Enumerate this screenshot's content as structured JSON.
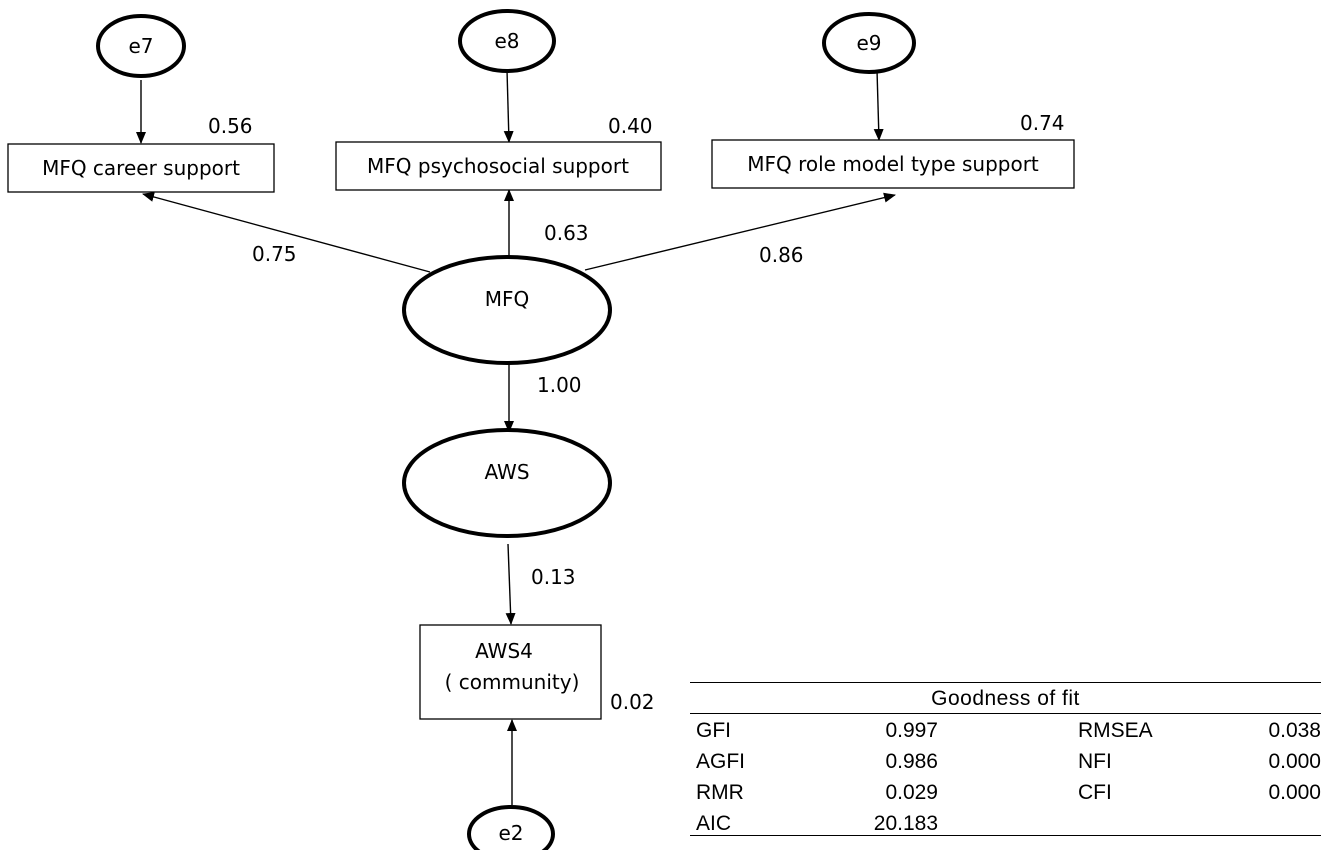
{
  "nodes": {
    "e7": "e7",
    "e8": "e8",
    "e9": "e9",
    "e2": "e2",
    "career": "MFQ career support",
    "psychosocial": "MFQ psychosocial support",
    "role_model": "MFQ role model type support",
    "mfq": "MFQ",
    "aws": "AWS",
    "aws4_line1": "AWS4",
    "aws4_line2": "( community)"
  },
  "coefficients": {
    "r2_career": "0.56",
    "r2_psychosocial": "0.40",
    "r2_role_model": "0.74",
    "r2_aws4": "0.02",
    "path_mfq_career": "0.75",
    "path_mfq_psychosocial": "0.63",
    "path_mfq_role_model": "0.86",
    "path_mfq_aws": "1.00",
    "path_aws_aws4": "0.13"
  },
  "fit_table": {
    "caption": "Goodness of fit",
    "rows": [
      {
        "l1": "GFI",
        "v1": "0.997",
        "l2": "RMSEA",
        "v2": "0.038"
      },
      {
        "l1": "AGFI",
        "v1": "0.986",
        "l2": "NFI",
        "v2": "0.000"
      },
      {
        "l1": "RMR",
        "v1": "0.029",
        "l2": "CFI",
        "v2": "0.000"
      },
      {
        "l1": "AIC",
        "v1": "20.183",
        "l2": "",
        "v2": ""
      }
    ]
  }
}
